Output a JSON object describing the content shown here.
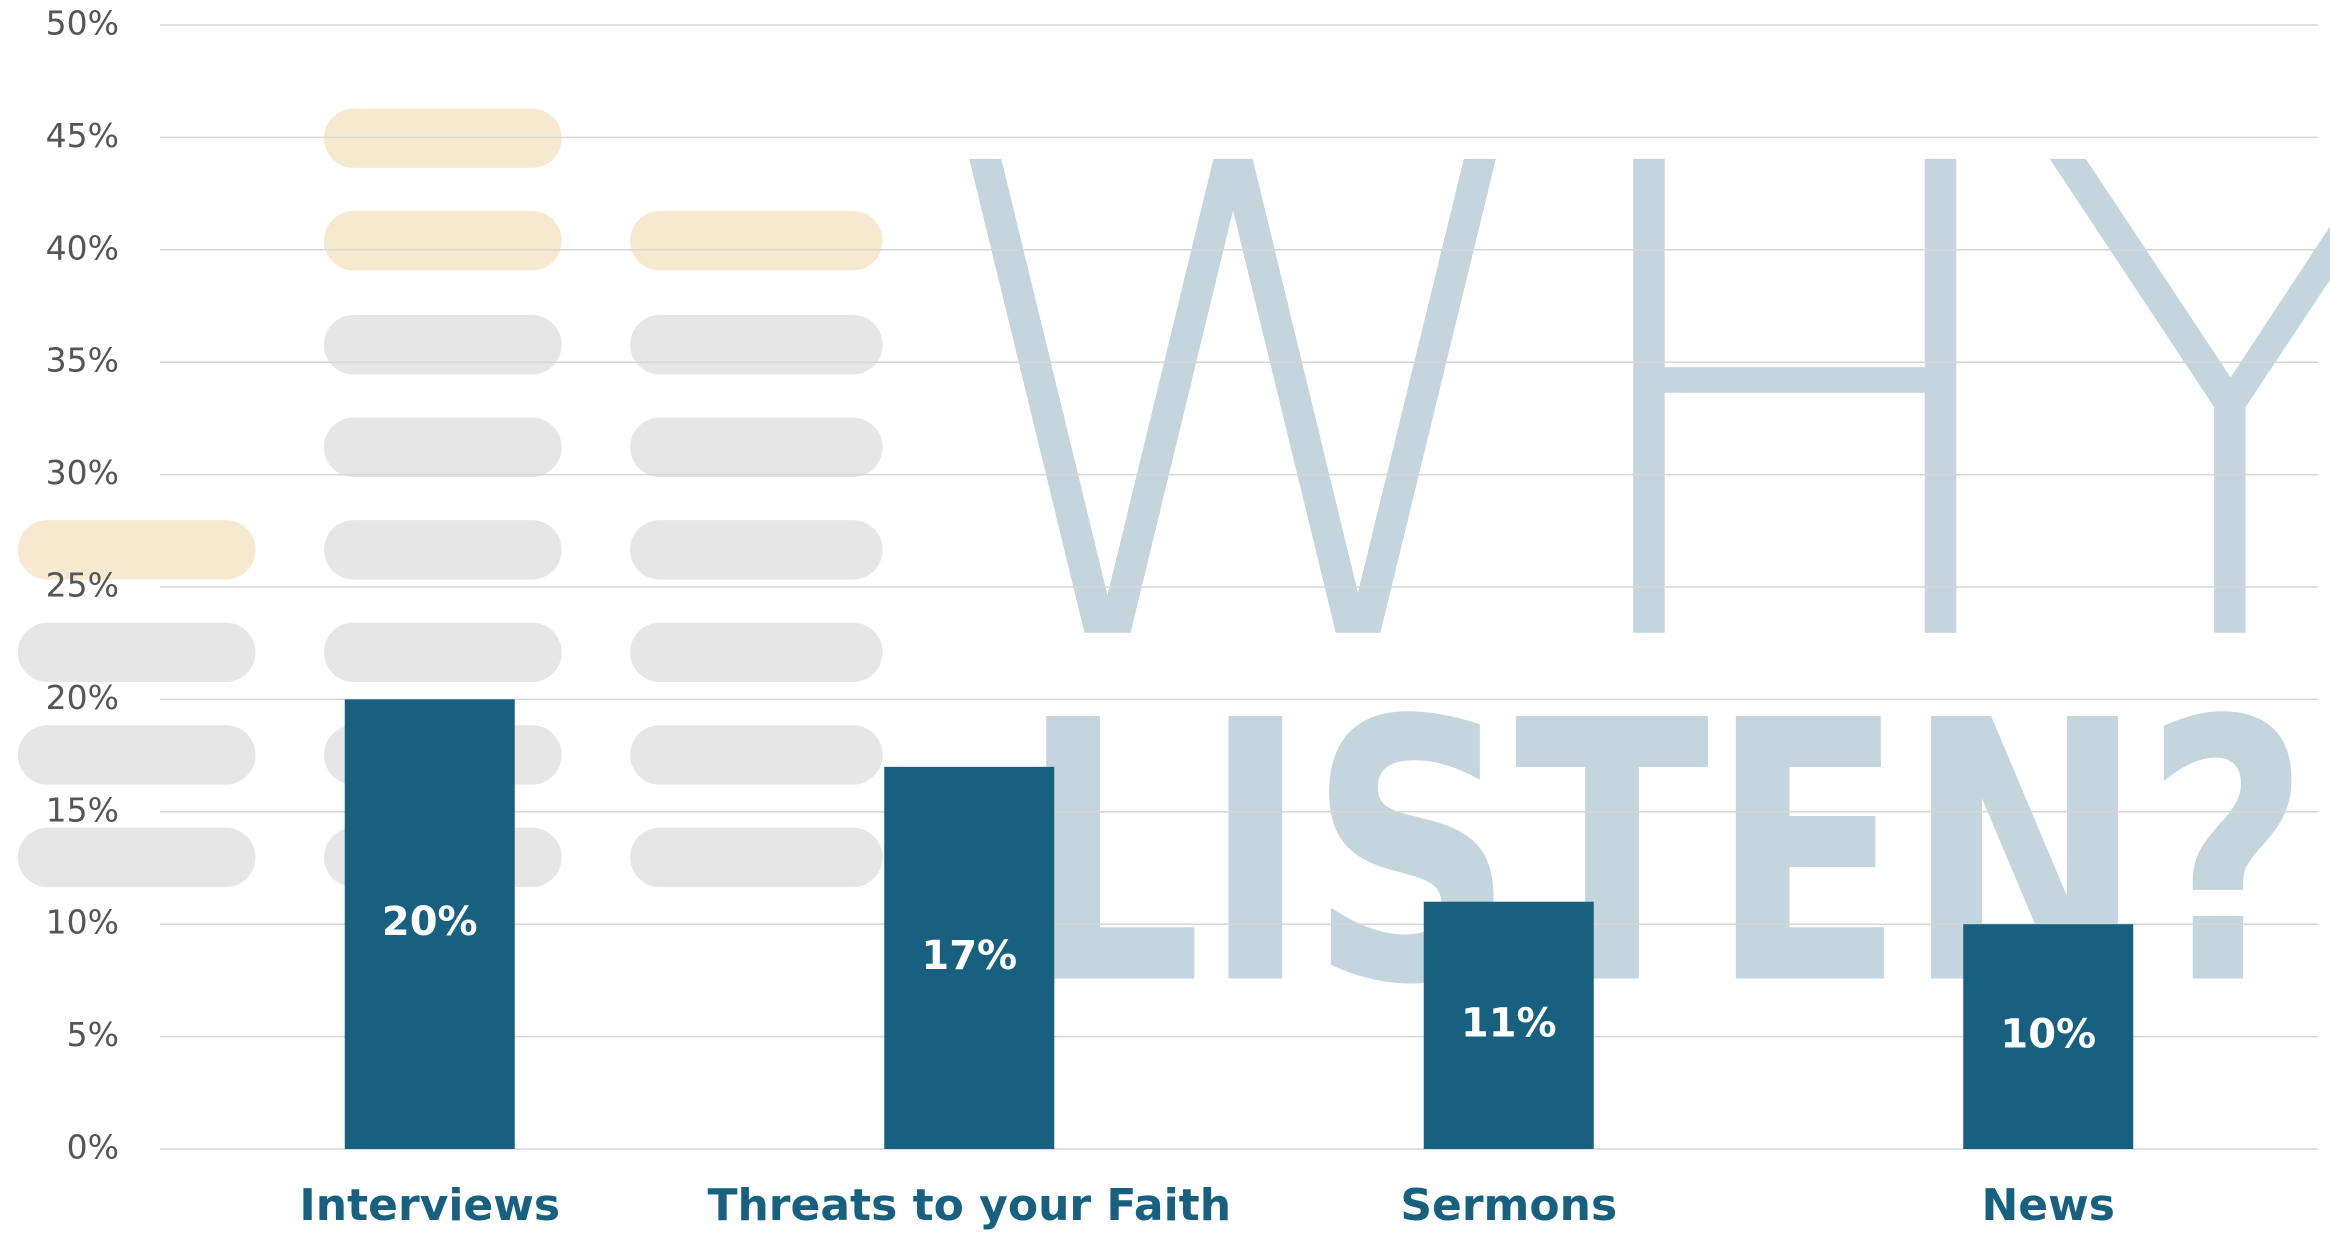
{
  "chart_data": {
    "type": "bar",
    "categories": [
      "Interviews",
      "Threats to your Faith",
      "Sermons",
      "News"
    ],
    "values": [
      20,
      17,
      11,
      10
    ],
    "value_labels": [
      "20%",
      "17%",
      "11%",
      "10%"
    ],
    "color": "#17607f",
    "ylim": [
      0,
      50
    ],
    "yticks": [
      {
        "value": 0,
        "label": "0%"
      },
      {
        "value": 5,
        "label": "5%"
      },
      {
        "value": 10,
        "label": "10%"
      },
      {
        "value": 15,
        "label": "15%"
      },
      {
        "value": 20,
        "label": "20%"
      },
      {
        "value": 25,
        "label": "25%"
      },
      {
        "value": 30,
        "label": "30%"
      },
      {
        "value": 35,
        "label": "35%"
      },
      {
        "value": 40,
        "label": "40%"
      },
      {
        "value": 45,
        "label": "45%"
      },
      {
        "value": 50,
        "label": "50%"
      }
    ],
    "grid": true,
    "watermark": [
      "WHY",
      "LISTEN?"
    ]
  }
}
